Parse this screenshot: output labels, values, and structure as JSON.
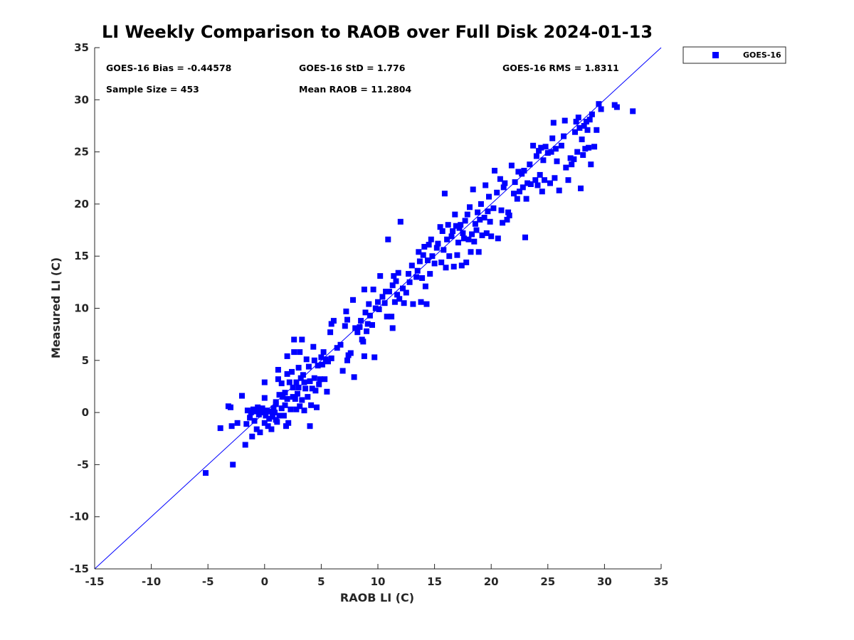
{
  "chart_data": {
    "type": "scatter",
    "title": "LI Weekly Comparison to RAOB over Full Disk 2024-01-13",
    "xlabel": "RAOB LI (C)",
    "ylabel": "Measured LI (C)",
    "xlim": [
      -15,
      35
    ],
    "ylim": [
      -15,
      35
    ],
    "xticks": [
      -15,
      -10,
      -5,
      0,
      5,
      10,
      15,
      20,
      25,
      30,
      35
    ],
    "yticks": [
      -15,
      -10,
      -5,
      0,
      5,
      10,
      15,
      20,
      25,
      30,
      35
    ],
    "grid": false,
    "legend_position": "outside-top-right",
    "reference_line": {
      "label": "1:1 line",
      "x": [
        -15,
        35
      ],
      "y": [
        -15,
        35
      ],
      "color": "#0000ff"
    },
    "stats": {
      "bias": "GOES-16 Bias = -0.44578",
      "std": "GOES-16 StD = 1.776",
      "rms": "GOES-16 RMS = 1.8311",
      "sample_size": "Sample Size = 453",
      "mean_raob": "Mean RAOB = 11.2804"
    },
    "series": [
      {
        "name": "GOES-16",
        "color": "#0000ff",
        "marker": "square",
        "points": [
          [
            -5.2,
            -5.8
          ],
          [
            -2.8,
            -5.0
          ],
          [
            -3.9,
            -1.5
          ],
          [
            -3.0,
            0.5
          ],
          [
            -3.2,
            0.6
          ],
          [
            -2.9,
            -1.3
          ],
          [
            -2.4,
            -1.0
          ],
          [
            -2.0,
            1.6
          ],
          [
            -1.7,
            -3.1
          ],
          [
            -1.6,
            -1.1
          ],
          [
            -1.5,
            0.2
          ],
          [
            -1.3,
            -0.5
          ],
          [
            -1.2,
            0.0
          ],
          [
            -1.1,
            -2.3
          ],
          [
            -1.0,
            0.3
          ],
          [
            -0.9,
            -0.8
          ],
          [
            -0.8,
            0.1
          ],
          [
            -0.7,
            -1.6
          ],
          [
            -0.6,
            0.5
          ],
          [
            -0.5,
            -0.2
          ],
          [
            -0.4,
            -1.9
          ],
          [
            -0.3,
            0.0
          ],
          [
            -0.2,
            0.4
          ],
          [
            0.0,
            -1.0
          ],
          [
            0.0,
            2.9
          ],
          [
            0.0,
            1.4
          ],
          [
            0.1,
            -0.3
          ],
          [
            0.2,
            0.2
          ],
          [
            0.3,
            -1.3
          ],
          [
            0.4,
            -0.6
          ],
          [
            0.5,
            0.1
          ],
          [
            0.6,
            -1.6
          ],
          [
            0.7,
            -0.4
          ],
          [
            0.8,
            0.4
          ],
          [
            0.9,
            0.0
          ],
          [
            1.0,
            -0.7
          ],
          [
            1.0,
            1.0
          ],
          [
            1.0,
            0.8
          ],
          [
            1.1,
            -0.9
          ],
          [
            1.2,
            4.1
          ],
          [
            1.2,
            3.2
          ],
          [
            1.3,
            1.7
          ],
          [
            1.3,
            -0.3
          ],
          [
            1.5,
            2.8
          ],
          [
            1.5,
            0.4
          ],
          [
            1.6,
            1.5
          ],
          [
            1.7,
            -0.3
          ],
          [
            1.8,
            1.9
          ],
          [
            1.8,
            0.7
          ],
          [
            1.9,
            -1.3
          ],
          [
            2.0,
            5.4
          ],
          [
            2.0,
            3.7
          ],
          [
            2.0,
            1.3
          ],
          [
            2.1,
            -1.0
          ],
          [
            2.2,
            2.9
          ],
          [
            2.3,
            0.3
          ],
          [
            2.4,
            3.9
          ],
          [
            2.5,
            2.4
          ],
          [
            2.5,
            1.5
          ],
          [
            2.6,
            5.8
          ],
          [
            2.6,
            7.0
          ],
          [
            2.7,
            1.3
          ],
          [
            2.8,
            2.9
          ],
          [
            2.8,
            0.3
          ],
          [
            2.9,
            1.8
          ],
          [
            3.0,
            4.3
          ],
          [
            3.0,
            2.4
          ],
          [
            3.1,
            5.8
          ],
          [
            3.1,
            0.6
          ],
          [
            3.2,
            3.3
          ],
          [
            3.3,
            1.2
          ],
          [
            3.3,
            7.0
          ],
          [
            3.4,
            3.6
          ],
          [
            3.5,
            2.9
          ],
          [
            3.5,
            0.2
          ],
          [
            3.6,
            2.3
          ],
          [
            3.7,
            5.1
          ],
          [
            3.8,
            1.5
          ],
          [
            3.9,
            4.4
          ],
          [
            4.0,
            -1.3
          ],
          [
            4.0,
            3.0
          ],
          [
            4.1,
            0.7
          ],
          [
            4.2,
            2.3
          ],
          [
            4.3,
            6.3
          ],
          [
            4.4,
            5.0
          ],
          [
            4.4,
            3.3
          ],
          [
            4.5,
            2.1
          ],
          [
            4.6,
            0.5
          ],
          [
            4.7,
            4.5
          ],
          [
            4.8,
            2.7
          ],
          [
            4.9,
            3.2
          ],
          [
            5.0,
            5.3
          ],
          [
            5.1,
            4.6
          ],
          [
            5.2,
            5.8
          ],
          [
            5.3,
            3.2
          ],
          [
            5.4,
            5.1
          ],
          [
            5.5,
            2.0
          ],
          [
            5.6,
            4.9
          ],
          [
            5.8,
            7.7
          ],
          [
            5.9,
            5.2
          ],
          [
            5.9,
            8.5
          ],
          [
            6.1,
            8.8
          ],
          [
            6.4,
            6.2
          ],
          [
            6.7,
            6.5
          ],
          [
            6.9,
            4.0
          ],
          [
            7.1,
            8.3
          ],
          [
            7.2,
            9.7
          ],
          [
            7.3,
            8.9
          ],
          [
            7.3,
            5.0
          ],
          [
            7.4,
            5.5
          ],
          [
            7.6,
            5.7
          ],
          [
            7.8,
            10.8
          ],
          [
            7.9,
            3.4
          ],
          [
            8.0,
            8.1
          ],
          [
            8.2,
            7.7
          ],
          [
            8.4,
            8.2
          ],
          [
            8.5,
            8.8
          ],
          [
            8.6,
            7.0
          ],
          [
            8.7,
            6.8
          ],
          [
            8.8,
            11.8
          ],
          [
            8.8,
            5.4
          ],
          [
            8.9,
            9.6
          ],
          [
            9.0,
            7.8
          ],
          [
            9.1,
            8.5
          ],
          [
            9.2,
            10.4
          ],
          [
            9.3,
            9.3
          ],
          [
            9.5,
            8.4
          ],
          [
            9.6,
            11.8
          ],
          [
            9.7,
            5.3
          ],
          [
            9.8,
            10.0
          ],
          [
            10.0,
            10.6
          ],
          [
            10.1,
            9.9
          ],
          [
            10.2,
            13.1
          ],
          [
            10.4,
            11.1
          ],
          [
            10.6,
            10.5
          ],
          [
            10.7,
            11.6
          ],
          [
            10.8,
            9.2
          ],
          [
            10.9,
            16.6
          ],
          [
            11.0,
            11.6
          ],
          [
            11.2,
            9.2
          ],
          [
            11.3,
            8.1
          ],
          [
            11.3,
            12.2
          ],
          [
            11.4,
            13.1
          ],
          [
            11.5,
            10.6
          ],
          [
            11.6,
            12.6
          ],
          [
            11.7,
            11.3
          ],
          [
            11.8,
            13.4
          ],
          [
            11.9,
            10.9
          ],
          [
            12.0,
            18.3
          ],
          [
            12.2,
            11.9
          ],
          [
            12.3,
            10.5
          ],
          [
            12.5,
            11.5
          ],
          [
            12.7,
            13.3
          ],
          [
            12.8,
            12.5
          ],
          [
            13.0,
            14.1
          ],
          [
            13.1,
            10.4
          ],
          [
            13.4,
            13.0
          ],
          [
            13.5,
            13.6
          ],
          [
            13.6,
            15.4
          ],
          [
            13.7,
            14.5
          ],
          [
            13.8,
            10.6
          ],
          [
            13.9,
            12.9
          ],
          [
            14.0,
            15.1
          ],
          [
            14.1,
            15.9
          ],
          [
            14.2,
            12.1
          ],
          [
            14.3,
            10.4
          ],
          [
            14.4,
            14.6
          ],
          [
            14.5,
            16.1
          ],
          [
            14.6,
            13.3
          ],
          [
            14.7,
            16.6
          ],
          [
            14.8,
            15.0
          ],
          [
            15.0,
            14.3
          ],
          [
            15.2,
            15.8
          ],
          [
            15.3,
            16.2
          ],
          [
            15.5,
            17.8
          ],
          [
            15.6,
            14.4
          ],
          [
            15.7,
            17.4
          ],
          [
            15.8,
            15.6
          ],
          [
            15.9,
            21.0
          ],
          [
            16.0,
            13.9
          ],
          [
            16.1,
            16.6
          ],
          [
            16.2,
            18.0
          ],
          [
            16.3,
            15.0
          ],
          [
            16.5,
            16.9
          ],
          [
            16.6,
            17.4
          ],
          [
            16.7,
            14.0
          ],
          [
            16.8,
            19.0
          ],
          [
            16.9,
            17.9
          ],
          [
            17.0,
            15.1
          ],
          [
            17.1,
            16.3
          ],
          [
            17.2,
            17.7
          ],
          [
            17.3,
            18.0
          ],
          [
            17.4,
            14.1
          ],
          [
            17.5,
            17.2
          ],
          [
            17.6,
            16.7
          ],
          [
            17.7,
            18.4
          ],
          [
            17.8,
            14.4
          ],
          [
            17.9,
            19.0
          ],
          [
            18.0,
            16.6
          ],
          [
            18.1,
            19.7
          ],
          [
            18.2,
            15.4
          ],
          [
            18.3,
            17.1
          ],
          [
            18.4,
            21.4
          ],
          [
            18.5,
            16.4
          ],
          [
            18.6,
            18.1
          ],
          [
            18.7,
            17.5
          ],
          [
            18.8,
            19.2
          ],
          [
            18.9,
            15.4
          ],
          [
            19.0,
            18.5
          ],
          [
            19.1,
            20.0
          ],
          [
            19.2,
            17.0
          ],
          [
            19.4,
            18.7
          ],
          [
            19.5,
            21.8
          ],
          [
            19.6,
            17.2
          ],
          [
            19.7,
            19.3
          ],
          [
            19.8,
            20.7
          ],
          [
            19.9,
            18.3
          ],
          [
            20.0,
            16.9
          ],
          [
            20.2,
            19.6
          ],
          [
            20.3,
            23.2
          ],
          [
            20.5,
            21.1
          ],
          [
            20.6,
            16.7
          ],
          [
            20.8,
            22.4
          ],
          [
            20.9,
            19.4
          ],
          [
            21.0,
            18.2
          ],
          [
            21.1,
            21.6
          ],
          [
            21.2,
            22.0
          ],
          [
            21.4,
            18.5
          ],
          [
            21.5,
            19.2
          ],
          [
            21.6,
            18.9
          ],
          [
            21.8,
            23.7
          ],
          [
            22.0,
            21.0
          ],
          [
            22.1,
            22.1
          ],
          [
            22.3,
            20.5
          ],
          [
            22.4,
            23.1
          ],
          [
            22.5,
            21.2
          ],
          [
            22.7,
            22.9
          ],
          [
            22.8,
            21.6
          ],
          [
            22.9,
            23.2
          ],
          [
            23.0,
            16.8
          ],
          [
            23.1,
            20.5
          ],
          [
            23.2,
            22.0
          ],
          [
            23.4,
            23.8
          ],
          [
            23.5,
            21.9
          ],
          [
            23.7,
            25.6
          ],
          [
            23.9,
            22.3
          ],
          [
            24.0,
            24.6
          ],
          [
            24.1,
            21.8
          ],
          [
            24.2,
            25.1
          ],
          [
            24.3,
            22.8
          ],
          [
            24.4,
            25.4
          ],
          [
            24.5,
            21.2
          ],
          [
            24.6,
            24.2
          ],
          [
            24.7,
            22.3
          ],
          [
            24.8,
            25.5
          ],
          [
            25.0,
            24.9
          ],
          [
            25.2,
            22.0
          ],
          [
            25.3,
            25.0
          ],
          [
            25.4,
            26.3
          ],
          [
            25.5,
            27.8
          ],
          [
            25.6,
            22.5
          ],
          [
            25.7,
            25.3
          ],
          [
            25.8,
            24.1
          ],
          [
            26.0,
            21.3
          ],
          [
            26.2,
            25.6
          ],
          [
            26.4,
            26.5
          ],
          [
            26.5,
            28.0
          ],
          [
            26.6,
            23.5
          ],
          [
            26.8,
            22.3
          ],
          [
            27.0,
            24.4
          ],
          [
            27.1,
            23.8
          ],
          [
            27.3,
            24.3
          ],
          [
            27.4,
            26.9
          ],
          [
            27.5,
            27.9
          ],
          [
            27.6,
            25.0
          ],
          [
            27.7,
            28.3
          ],
          [
            27.8,
            27.3
          ],
          [
            27.9,
            21.5
          ],
          [
            28.0,
            26.2
          ],
          [
            28.1,
            24.7
          ],
          [
            28.2,
            27.5
          ],
          [
            28.3,
            25.3
          ],
          [
            28.4,
            27.9
          ],
          [
            28.5,
            27.1
          ],
          [
            28.6,
            25.4
          ],
          [
            28.7,
            28.1
          ],
          [
            28.8,
            23.8
          ],
          [
            28.9,
            28.6
          ],
          [
            29.1,
            25.5
          ],
          [
            29.3,
            27.1
          ],
          [
            29.5,
            29.6
          ],
          [
            29.7,
            29.1
          ],
          [
            30.9,
            29.5
          ],
          [
            31.1,
            29.3
          ],
          [
            32.5,
            28.9
          ]
        ]
      }
    ]
  }
}
